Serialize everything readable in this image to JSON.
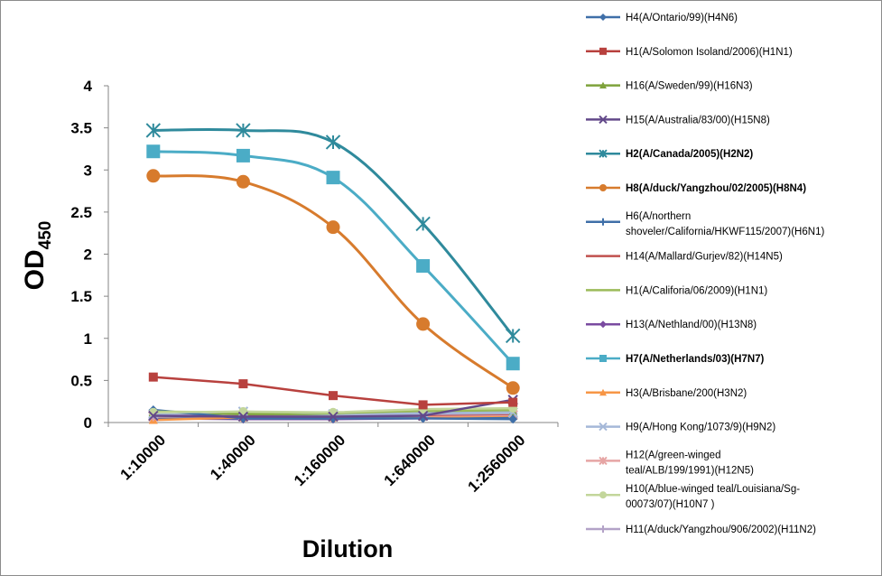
{
  "chart_data": {
    "type": "line",
    "ylabel": "OD",
    "ylabel_sub": "450",
    "xlabel": "Dilution",
    "categories": [
      "1:10000",
      "1:40000",
      "1:160000",
      "1:640000",
      "1:2560000"
    ],
    "ylim": [
      0,
      4
    ],
    "yticks": [
      "0",
      "0.5",
      "1",
      "1.5",
      "2",
      "2.5",
      "3",
      "3.5",
      "4"
    ],
    "grid": false,
    "legend_position": "right",
    "series": [
      {
        "name": "H4(A/Ontario/99)(H4N6)",
        "lines": [
          "H4(A/Ontario/99)(H4N6)"
        ],
        "bold": false,
        "color": "#3f6fa8",
        "marker": "diamond",
        "values": [
          0.15,
          0.05,
          0.05,
          0.05,
          0.04
        ]
      },
      {
        "name": "H1(A/Solomon Isoland/2006)(H1N1)",
        "lines": [
          "H1(A/Solomon Isoland/2006)(H1N1)"
        ],
        "bold": false,
        "color": "#b8413e",
        "marker": "square",
        "values": [
          0.54,
          0.46,
          0.32,
          0.21,
          0.24
        ]
      },
      {
        "name": "H16(A/Sweden/99)(H16N3)",
        "lines": [
          "H16(A/Sweden/99)(H16N3)"
        ],
        "bold": false,
        "color": "#7ea23b",
        "marker": "triangle",
        "values": [
          0.12,
          0.1,
          0.1,
          0.12,
          0.13
        ]
      },
      {
        "name": "H15(A/Australia/83/00)(H15N8)",
        "lines": [
          "H15(A/Australia/83/00)(H15N8)"
        ],
        "bold": false,
        "color": "#63498a",
        "marker": "x",
        "values": [
          0.08,
          0.07,
          0.07,
          0.08,
          0.27
        ]
      },
      {
        "name": "H2(A/Canada/2005)(H2N2)",
        "lines": [
          "H2(A/Canada/2005)(H2N2)"
        ],
        "bold": true,
        "color": "#2f8a9c",
        "marker": "star",
        "values": [
          3.47,
          3.47,
          3.33,
          2.36,
          1.03
        ]
      },
      {
        "name": "H8(A/duck/Yangzhou/02/2005)(H8N4)",
        "lines": [
          "H8(A/duck/Yangzhou/02/2005)(H8N4)"
        ],
        "bold": true,
        "color": "#d77b2d",
        "marker": "circle",
        "values": [
          2.93,
          2.86,
          2.32,
          1.17,
          0.41
        ]
      },
      {
        "name": "H6(A/northern shoveler/California/HKWF115/2007)(H6N1)",
        "lines": [
          "H6(A/northern",
          "shoveler/California/HKWF115/2007)(H6N1)"
        ],
        "bold": false,
        "color": "#3f6fa8",
        "marker": "plus",
        "values": [
          0.06,
          0.05,
          0.05,
          0.06,
          0.06
        ]
      },
      {
        "name": "H14(A/Mallard/Gurjev/82)(H14N5)",
        "lines": [
          "H14(A/Mallard/Gurjev/82)(H14N5)"
        ],
        "bold": false,
        "color": "#c0504d",
        "marker": "none",
        "values": [
          0.09,
          0.08,
          0.08,
          0.09,
          0.1
        ]
      },
      {
        "name": "H1(A/Califoria/06/2009)(H1N1)",
        "lines": [
          "H1(A/Califoria/06/2009)(H1N1)"
        ],
        "bold": false,
        "color": "#9bbb59",
        "marker": "none",
        "values": [
          0.13,
          0.12,
          0.11,
          0.14,
          0.15
        ]
      },
      {
        "name": "H13(A/Nethland/00)(H13N8)",
        "lines": [
          "H13(A/Nethland/00)(H13N8)"
        ],
        "bold": false,
        "color": "#7a4ba0",
        "marker": "diamond",
        "values": [
          0.05,
          0.04,
          0.04,
          0.05,
          0.05
        ]
      },
      {
        "name": "H7(A/Netherlands/03)(H7N7)",
        "lines": [
          "H7(A/Netherlands/03)(H7N7)"
        ],
        "bold": true,
        "color": "#4bacc6",
        "marker": "square",
        "values": [
          3.22,
          3.17,
          2.91,
          1.86,
          0.7
        ]
      },
      {
        "name": "H3(A/Brisbane/200(H3N2)",
        "lines": [
          "H3(A/Brisbane/200(H3N2)"
        ],
        "bold": false,
        "color": "#f79646",
        "marker": "triangle",
        "values": [
          0.03,
          0.06,
          0.06,
          0.07,
          0.08
        ]
      },
      {
        "name": "H9(A/Hong Kong/1073/9)(H9N2)",
        "lines": [
          "H9(A/Hong Kong/1073/9)(H9N2)"
        ],
        "bold": false,
        "color": "#a5b8d8",
        "marker": "x",
        "values": [
          0.1,
          0.13,
          0.1,
          0.11,
          0.12
        ]
      },
      {
        "name": "H12(A/green-winged teal/ALB/199/1991)(H12N5)",
        "lines": [
          "H12(A/green-winged",
          "teal/ALB/199/1991)(H12N5)"
        ],
        "bold": false,
        "color": "#e6a5a4",
        "marker": "star",
        "values": [
          0.07,
          0.08,
          0.07,
          0.08,
          0.09
        ]
      },
      {
        "name": "H10(A/blue-winged teal/Louisiana/Sg-00073/07)(H10N7 )",
        "lines": [
          "H10(A/blue-winged teal/Louisiana/Sg-",
          "00073/07)(H10N7 )"
        ],
        "bold": false,
        "color": "#c3d69b",
        "marker": "circle",
        "values": [
          0.12,
          0.13,
          0.12,
          0.16,
          0.17
        ]
      },
      {
        "name": "H11(A/duck/Yangzhou/906/2002)(H11N2)",
        "lines": [
          "H11(A/duck/Yangzhou/906/2002)(H11N2)"
        ],
        "bold": false,
        "color": "#b3a2c7",
        "marker": "plus",
        "values": [
          0.09,
          0.1,
          0.09,
          0.1,
          0.11
        ]
      }
    ]
  }
}
